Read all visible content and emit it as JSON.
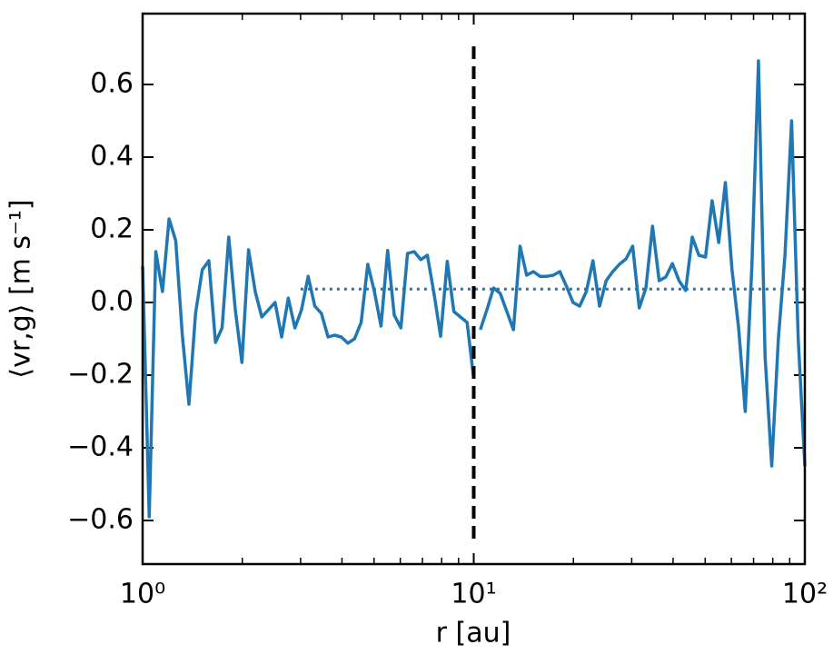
{
  "chart_data": {
    "type": "line",
    "xlabel": "r [au]",
    "ylabel": "⟨vr,g⟩ [m s⁻¹]",
    "xscale": "log",
    "xlim": [
      1,
      100
    ],
    "ylim": [
      -0.72,
      0.795
    ],
    "xticks": [
      {
        "value": 1,
        "label": "10⁰"
      },
      {
        "value": 10,
        "label": "10¹"
      },
      {
        "value": 100,
        "label": "10²"
      }
    ],
    "xminorticks": [
      2,
      3,
      4,
      5,
      6,
      7,
      8,
      9,
      20,
      30,
      40,
      50,
      60,
      70,
      80,
      90
    ],
    "yticks": [
      {
        "value": -0.6,
        "label": "−0.6"
      },
      {
        "value": -0.4,
        "label": "−0.4"
      },
      {
        "value": -0.2,
        "label": "−0.2"
      },
      {
        "value": 0,
        "label": "0.0"
      },
      0.2,
      0.4,
      0.6
    ],
    "series": [
      {
        "color": "#1f77b4",
        "x": [
          1,
          1.047,
          1.096,
          1.148,
          1.202,
          1.259,
          1.318,
          1.38,
          1.445,
          1.514,
          1.585,
          1.66,
          1.738,
          1.82,
          1.905,
          1.995,
          2.089,
          2.188,
          2.291,
          2.399,
          2.512,
          2.63,
          2.754,
          2.884,
          3.02,
          3.162,
          3.311,
          3.467,
          3.631,
          3.802,
          3.981,
          4.169,
          4.365,
          4.571,
          4.786,
          5.012,
          5.248,
          5.495,
          5.754,
          6.026,
          6.31,
          6.607,
          6.918,
          7.244,
          7.586,
          7.943,
          8.318,
          8.71,
          9.12,
          9.55,
          10
        ],
        "values": [
          0.1,
          -0.59,
          0.14,
          0.03,
          0.23,
          0.17,
          -0.09,
          -0.28,
          -0.03,
          0.09,
          0.115,
          -0.11,
          -0.07,
          0.18,
          -0.02,
          -0.165,
          0.145,
          0.03,
          -0.04,
          -0.02,
          0,
          -0.095,
          0.012,
          -0.07,
          -0.02,
          0.072,
          -0.01,
          -0.03,
          -0.095,
          -0.09,
          -0.095,
          -0.112,
          -0.1,
          -0.055,
          0.105,
          0.03,
          -0.065,
          0.143,
          -0.035,
          -0.07,
          0.135,
          0.14,
          0.118,
          0.13,
          0.025,
          -0.093,
          0.113,
          -0.025,
          -0.04,
          -0.055,
          -0.21
        ]
      },
      {
        "color": "#1f77b4",
        "x": [
          10.47,
          10.96,
          11.48,
          12.02,
          12.59,
          13.18,
          13.8,
          14.45,
          15.14,
          15.85,
          16.6,
          17.38,
          18.2,
          19.05,
          19.95,
          20.89,
          21.88,
          22.91,
          23.99,
          25.12,
          26.3,
          27.54,
          28.84,
          30.2,
          31.62,
          33.11,
          34.67,
          36.31,
          38.02,
          39.81,
          41.69,
          43.65,
          45.71,
          47.86,
          50.12,
          52.48,
          54.95,
          57.54,
          60.26,
          63.1,
          66.07,
          69.18,
          72.44,
          75.86,
          79.43,
          83.18,
          87.1,
          91.2,
          95.5,
          100
        ],
        "values": [
          -0.075,
          -0.02,
          0.04,
          0.025,
          -0.025,
          -0.075,
          0.155,
          0.075,
          0.085,
          0.072,
          0.072,
          0.075,
          0.085,
          0.045,
          0,
          -0.01,
          0.03,
          0.115,
          -0.01,
          0.06,
          0.085,
          0.105,
          0.12,
          0.155,
          -0.015,
          0.04,
          0.21,
          0.06,
          0.07,
          0.107,
          0.06,
          0.033,
          0.18,
          0.13,
          0.125,
          0.28,
          0.165,
          0.33,
          0.09,
          -0.07,
          -0.3,
          0.1,
          0.665,
          -0.15,
          -0.45,
          -0.1,
          0.13,
          0.5,
          -0.1,
          -0.45
        ]
      }
    ],
    "hline": {
      "y": 0.037,
      "x": [
        3,
        100
      ],
      "color": "#1f77b4",
      "style": "dotted"
    },
    "vline": {
      "x": 10,
      "y": [
        -0.65,
        0.71
      ],
      "color": "#000000",
      "style": "dashed"
    }
  }
}
